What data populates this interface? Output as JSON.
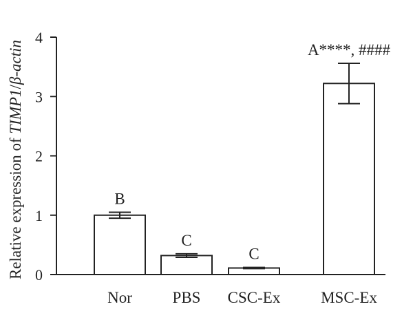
{
  "chart_data": {
    "type": "bar",
    "categories": [
      "Nor",
      "PBS",
      "CSC-Ex",
      "MSC-Ex"
    ],
    "values": [
      1.0,
      0.32,
      0.11,
      3.22
    ],
    "errors": [
      0.05,
      0.03,
      0.01,
      0.34
    ],
    "annotations": [
      "B",
      "C",
      "C",
      "A****, ####"
    ],
    "ylabel_parts": [
      {
        "text": "Relative expression of ",
        "italic": false
      },
      {
        "text": "TIMP1",
        "italic": true
      },
      {
        "text": "/",
        "italic": false
      },
      {
        "text": "β-actin",
        "italic": true
      }
    ],
    "ylim": [
      0,
      4
    ],
    "yticks": [
      "0",
      "1",
      "2",
      "3",
      "4"
    ],
    "grid": false,
    "bar_fill": "#ffffff",
    "bar_stroke": "#222222"
  }
}
